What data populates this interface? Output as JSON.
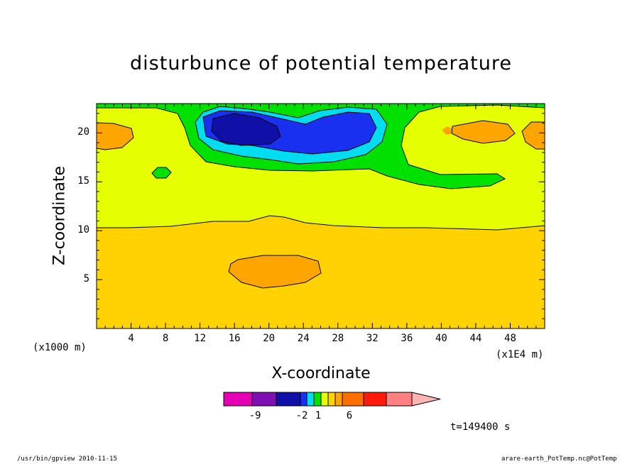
{
  "chart_data": {
    "type": "heatmap",
    "title": "disturbunce of potential temperature",
    "xlabel": "X-coordinate",
    "ylabel": "Z-coordinate",
    "x_unit_left": "(x1000 m)",
    "x_unit_right": "(x1E4 m)",
    "time_label": "t=149400 s",
    "xlim": [
      0,
      52
    ],
    "ylim": [
      0,
      23
    ],
    "x_ticks": [
      4,
      8,
      12,
      16,
      20,
      24,
      28,
      32,
      36,
      40,
      44,
      48
    ],
    "y_ticks": [
      5,
      10,
      15,
      20
    ],
    "colorbar": {
      "colors": [
        "#e600b3",
        "#7f10b3",
        "#1010a8",
        "#1a30f0",
        "#00dcf0",
        "#00e100",
        "#e6ff00",
        "#ffd200",
        "#ffa500",
        "#ff6e00",
        "#ff1a0a",
        "#ff8080",
        "#ffb4b4"
      ],
      "tick_labels": [
        "-9",
        "-2",
        "1",
        "6"
      ]
    },
    "colors": {
      "background_field": "#ffd200",
      "upper_layer": "#e6ff00",
      "warm_anomaly": "#ffa500",
      "cool_band": "#00e100",
      "cold_ring": "#00dcf0",
      "cold_core": "#1a30f0",
      "coldest_core": "#1010a8"
    }
  },
  "footer": {
    "left": "/usr/bin/gpview  2010-11-15",
    "right": "arare-earth_PotTemp.nc@PotTemp"
  }
}
